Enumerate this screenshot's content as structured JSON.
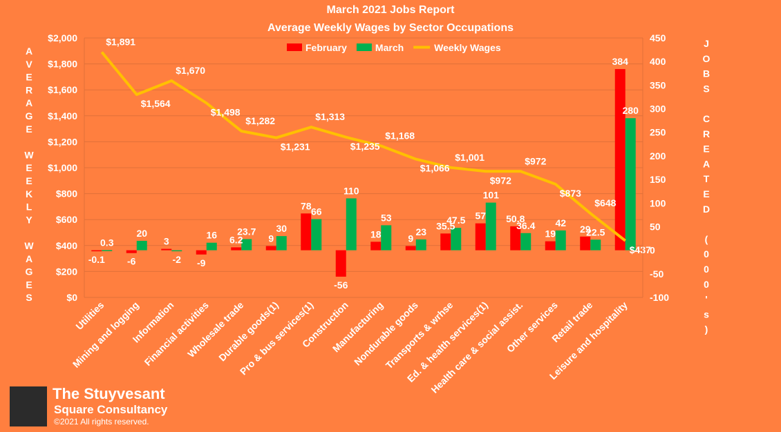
{
  "chart_data": {
    "type": "bar",
    "title": "March 2021 Jobs Report",
    "subtitle": "Average Weekly Wages by Sector Occupations",
    "ylabel_left": "AVERAGE WEEKLY WAGES",
    "ylabel_right": "JOBS CREATED (000's)",
    "y_left_range": [
      0,
      2000
    ],
    "y_left_ticks": [
      "$0",
      "$200",
      "$400",
      "$600",
      "$800",
      "$1,000",
      "$1,200",
      "$1,400",
      "$1,600",
      "$1,800",
      "$2,000"
    ],
    "y_right_range": [
      -100,
      450
    ],
    "y_right_ticks": [
      "-100",
      "-50",
      "0",
      "50",
      "100",
      "150",
      "200",
      "250",
      "300",
      "350",
      "400",
      "450"
    ],
    "legend_position": "top-center",
    "categories": [
      "Utilities",
      "Mining and logging",
      "Information",
      "Financial activities",
      "Wholesale trade",
      "Durable goods(1)",
      "Pro & bus services(1)",
      "Construction",
      "Manufacturing",
      "Nondurable goods",
      "Transports & wrhse",
      "Ed. & health services(1)",
      "Health care & social assist.",
      "Other services",
      "Retail trade",
      "Leisure and hospitality"
    ],
    "series": [
      {
        "name": "February",
        "axis": "right",
        "color": "#FF0000",
        "values": [
          -0.1,
          -6,
          3,
          -9,
          6.2,
          9,
          78,
          -56,
          18,
          9,
          35.5,
          57,
          50.8,
          19,
          29,
          384
        ],
        "labels": [
          "-0.1",
          "-6",
          "3",
          "-9",
          "6.2",
          "9",
          "78",
          "-56",
          "18",
          "9",
          "35.5",
          "57",
          "50.8",
          "19",
          "29",
          "384"
        ]
      },
      {
        "name": "March",
        "axis": "right",
        "color": "#00B050",
        "values": [
          0.3,
          20,
          -2,
          16,
          23.7,
          30,
          66,
          110,
          53,
          23,
          47.5,
          101,
          36.4,
          42,
          22.5,
          280
        ],
        "labels": [
          "0.3",
          "20",
          "-2",
          "16",
          "23.7",
          "30",
          "66",
          "110",
          "53",
          "23",
          "47.5",
          "101",
          "36.4",
          "42",
          "22.5",
          "280"
        ]
      },
      {
        "name": "Weekly Wages",
        "axis": "left",
        "type": "line",
        "color": "#FFC000",
        "values": [
          1891,
          1564,
          1670,
          1498,
          1282,
          1231,
          1313,
          1235,
          1168,
          1066,
          1001,
          972,
          972,
          873,
          648,
          437
        ],
        "labels": [
          "$1,891",
          "$1,564",
          "$1,670",
          "$1,498",
          "$1,282",
          "$1,231",
          "$1,313",
          "$1,235",
          "$1,168",
          "$1,066",
          "$1,001",
          "$972",
          "$972",
          "$873",
          "$648",
          "$437"
        ]
      }
    ]
  },
  "footer": {
    "brand_line1": "The Stuyvesant",
    "brand_line2": "Square  Consultancy",
    "copyright": "©2021 All rights reserved."
  },
  "colors": {
    "background": "#FF7F3F",
    "february": "#FF0000",
    "march": "#00B050",
    "wages": "#FFC000",
    "gridline": "#E0703A"
  }
}
